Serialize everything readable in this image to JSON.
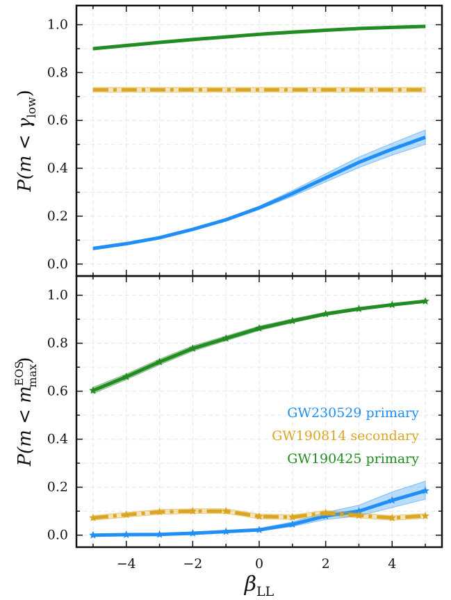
{
  "chart_data": [
    {
      "type": "line",
      "panel": "top",
      "ylabel_parts": {
        "main": "P(m < γ",
        "sub": "low",
        "close": ")"
      },
      "xlim": [
        -5.5,
        5.5
      ],
      "ylim": [
        -0.05,
        1.08
      ],
      "xticks": [
        -4,
        -2,
        0,
        2,
        4
      ],
      "yticks": [
        0.0,
        0.2,
        0.4,
        0.6,
        0.8,
        1.0
      ],
      "ytick_labels": [
        "0.0",
        "0.2",
        "0.4",
        "0.6",
        "0.8",
        "1.0"
      ],
      "grid": true,
      "series": [
        {
          "name": "GW230529 primary",
          "color": "#1f8ff5",
          "style": "solid",
          "markers": false,
          "x": [
            -5,
            -4,
            -3,
            -2,
            -1,
            0,
            1,
            2,
            3,
            4,
            5
          ],
          "y": [
            0.065,
            0.085,
            0.11,
            0.145,
            0.185,
            0.235,
            0.295,
            0.36,
            0.425,
            0.48,
            0.53
          ],
          "band_lo": [
            0.06,
            0.08,
            0.105,
            0.14,
            0.18,
            0.228,
            0.283,
            0.343,
            0.403,
            0.455,
            0.5
          ],
          "band_hi": [
            0.07,
            0.09,
            0.115,
            0.15,
            0.19,
            0.242,
            0.307,
            0.377,
            0.447,
            0.505,
            0.56
          ]
        },
        {
          "name": "GW190814 secondary",
          "color": "#daa520",
          "style": "dashdot",
          "markers": false,
          "x": [
            -5,
            5
          ],
          "y": [
            0.728,
            0.728
          ],
          "band_lo": [
            0.718,
            0.718
          ],
          "band_hi": [
            0.738,
            0.738
          ]
        },
        {
          "name": "GW190425 primary",
          "color": "#228b22",
          "style": "solid",
          "markers": false,
          "x": [
            -5,
            -4,
            -3,
            -2,
            -1,
            0,
            1,
            2,
            3,
            4,
            5
          ],
          "y": [
            0.9,
            0.913,
            0.926,
            0.938,
            0.949,
            0.96,
            0.969,
            0.977,
            0.984,
            0.989,
            0.993
          ],
          "band_lo": [
            0.895,
            0.908,
            0.921,
            0.933,
            0.944,
            0.955,
            0.964,
            0.972,
            0.979,
            0.984,
            0.988
          ],
          "band_hi": [
            0.905,
            0.918,
            0.931,
            0.943,
            0.954,
            0.965,
            0.974,
            0.982,
            0.989,
            0.994,
            0.998
          ]
        }
      ]
    },
    {
      "type": "line",
      "panel": "bottom",
      "ylabel_parts": {
        "main": "P(m < m",
        "sub": "max",
        "sup": "EOS",
        "close": ")"
      },
      "xlabel_parts": {
        "main": "β",
        "sub": "LL"
      },
      "xlim": [
        -5.5,
        5.5
      ],
      "ylim": [
        -0.05,
        1.08
      ],
      "xticks": [
        -4,
        -2,
        0,
        2,
        4
      ],
      "xtick_labels": [
        "−4",
        "−2",
        "0",
        "2",
        "4"
      ],
      "yticks": [
        0.0,
        0.2,
        0.4,
        0.6,
        0.8,
        1.0
      ],
      "ytick_labels": [
        "0.0",
        "0.2",
        "0.4",
        "0.6",
        "0.8",
        "1.0"
      ],
      "grid": true,
      "legend_position": "center-right",
      "series": [
        {
          "name": "GW230529 primary",
          "color": "#1f8ff5",
          "style": "solid",
          "markers": true,
          "x": [
            -5,
            -4,
            -3,
            -2,
            -1,
            0,
            1,
            2,
            3,
            4,
            5
          ],
          "y": [
            0.0,
            0.002,
            0.003,
            0.008,
            0.015,
            0.022,
            0.045,
            0.08,
            0.1,
            0.145,
            0.185
          ],
          "band_lo": [
            0.0,
            0.0,
            0.001,
            0.005,
            0.011,
            0.017,
            0.036,
            0.065,
            0.08,
            0.115,
            0.15
          ],
          "band_hi": [
            0.003,
            0.005,
            0.006,
            0.012,
            0.02,
            0.028,
            0.055,
            0.095,
            0.125,
            0.18,
            0.225
          ]
        },
        {
          "name": "GW190814 secondary",
          "color": "#daa520",
          "style": "dashdot",
          "markers": true,
          "x": [
            -5,
            -4,
            -3,
            -2,
            -1,
            0,
            1,
            2,
            3,
            4,
            5
          ],
          "y": [
            0.072,
            0.085,
            0.097,
            0.1,
            0.1,
            0.078,
            0.075,
            0.093,
            0.082,
            0.072,
            0.08
          ],
          "band_lo": [
            0.062,
            0.075,
            0.087,
            0.09,
            0.09,
            0.068,
            0.065,
            0.083,
            0.072,
            0.062,
            0.07
          ],
          "band_hi": [
            0.082,
            0.095,
            0.107,
            0.11,
            0.11,
            0.088,
            0.085,
            0.103,
            0.092,
            0.082,
            0.09
          ]
        },
        {
          "name": "GW190425 primary",
          "color": "#228b22",
          "style": "solid",
          "markers": true,
          "x": [
            -5,
            -4,
            -3,
            -2,
            -1,
            0,
            1,
            2,
            3,
            4,
            5
          ],
          "y": [
            0.603,
            0.66,
            0.722,
            0.778,
            0.82,
            0.862,
            0.893,
            0.922,
            0.943,
            0.96,
            0.975
          ],
          "band_lo": [
            0.59,
            0.648,
            0.71,
            0.767,
            0.81,
            0.853,
            0.885,
            0.915,
            0.937,
            0.955,
            0.971
          ],
          "band_hi": [
            0.616,
            0.672,
            0.734,
            0.789,
            0.83,
            0.871,
            0.901,
            0.929,
            0.949,
            0.965,
            0.979
          ]
        }
      ]
    }
  ]
}
